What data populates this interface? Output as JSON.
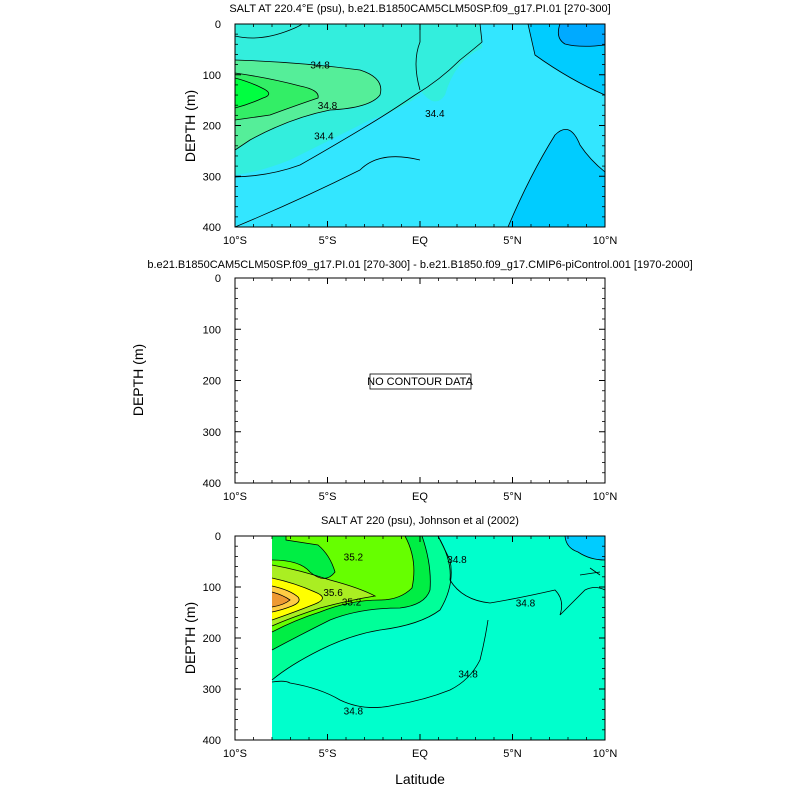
{
  "chart_data": [
    {
      "type": "contour",
      "title": "SALT AT 220.4°E (psu), b.e21.B1850CAM5CLM50SP.f09_g17.PI.01 [270-300]",
      "xlabel": "",
      "ylabel": "DEPTH (m)",
      "xlim": [
        -10,
        10
      ],
      "ylim": [
        400,
        0
      ],
      "x_ticks": [
        "10°S",
        "5°S",
        "EQ",
        "5°N",
        "10°N"
      ],
      "y_ticks": [
        "0",
        "100",
        "200",
        "300",
        "400"
      ],
      "contour_labels": [
        {
          "value": "34.8",
          "lat": -5.4,
          "depth": 80
        },
        {
          "value": "34.8",
          "lat": -5.0,
          "depth": 160
        },
        {
          "value": "34.4",
          "lat": -5.2,
          "depth": 220
        },
        {
          "value": "34.4",
          "lat": 0.8,
          "depth": 175
        }
      ],
      "colors": [
        "#00ff40",
        "#33ee66",
        "#55ee99",
        "#33eedd",
        "#33e6ff",
        "#00ccff",
        "#00aaff"
      ]
    },
    {
      "type": "contour",
      "title": "b.e21.B1850CAM5CLM50SP.f09_g17.PI.01 [270-300] - b.e21.B1850.f09_g17.CMIP6-piControl.001 [1970-2000]",
      "xlabel": "",
      "ylabel": "DEPTH (m)",
      "xlim": [
        -10,
        10
      ],
      "ylim": [
        400,
        0
      ],
      "x_ticks": [
        "10°S",
        "5°S",
        "EQ",
        "5°N",
        "10°N"
      ],
      "y_ticks": [
        "0",
        "100",
        "200",
        "300",
        "400"
      ],
      "annotation": "NO CONTOUR DATA"
    },
    {
      "type": "contour",
      "title": "SALT AT 220 (psu), Johnson et al (2002)",
      "xlabel": "Latitude",
      "ylabel": "DEPTH (m)",
      "xlim": [
        -10,
        10
      ],
      "ylim": [
        400,
        0
      ],
      "x_ticks": [
        "10°S",
        "5°S",
        "EQ",
        "5°N",
        "10°N"
      ],
      "y_ticks": [
        "0",
        "100",
        "200",
        "300",
        "400"
      ],
      "contour_labels": [
        {
          "value": "35.2",
          "lat": -3.6,
          "depth": 40
        },
        {
          "value": "34.8",
          "lat": 2.0,
          "depth": 45
        },
        {
          "value": "35.6",
          "lat": -4.7,
          "depth": 110
        },
        {
          "value": "35.2",
          "lat": -3.7,
          "depth": 128
        },
        {
          "value": "34.8",
          "lat": 5.7,
          "depth": 130
        },
        {
          "value": "34.8",
          "lat": 2.6,
          "depth": 270
        },
        {
          "value": "34.8",
          "lat": -3.6,
          "depth": 342
        }
      ],
      "colors": [
        "#00ffcc",
        "#00ff99",
        "#00ff66",
        "#00ee44",
        "#66ff00",
        "#aaee22",
        "#ffff00",
        "#ffcc44",
        "#ee9933",
        "#00ccff"
      ]
    }
  ]
}
